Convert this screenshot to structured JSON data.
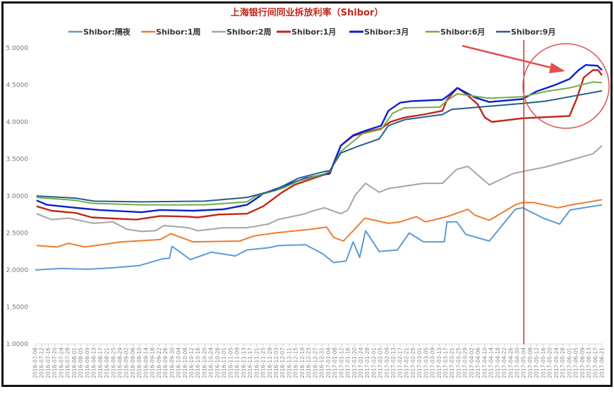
{
  "chart_data": {
    "type": "line",
    "title": "上海银行间同业拆放利率（Shibor）",
    "xlabel": "",
    "ylabel": "",
    "ylim": [
      1.0,
      5.0
    ],
    "yticks": [
      "1.0000",
      "1.5000",
      "2.0000",
      "2.5000",
      "3.0000",
      "3.5000",
      "4.0000",
      "4.5000",
      "5.0000"
    ],
    "grid": false,
    "legend_position": "top",
    "x_unit": "category index into categories",
    "categories": [
      "2016-07-08",
      "2016-07-12",
      "2016-07-16",
      "2016-07-20",
      "2016-07-24",
      "2016-07-28",
      "2016-08-01",
      "2016-08-05",
      "2016-08-09",
      "2016-08-13",
      "2016-08-17",
      "2016-08-21",
      "2016-08-25",
      "2016-08-29",
      "2016-09-02",
      "2016-09-06",
      "2016-09-10",
      "2016-09-14",
      "2016-09-18",
      "2016-09-22",
      "2016-09-26",
      "2016-09-30",
      "2016-10-04",
      "2016-10-08",
      "2016-10-12",
      "2016-10-16",
      "2016-10-20",
      "2016-10-24",
      "2016-10-28",
      "2016-11-01",
      "2016-11-05",
      "2016-11-09",
      "2016-11-13",
      "2016-11-17",
      "2016-11-21",
      "2016-11-25",
      "2016-11-29",
      "2016-12-03",
      "2016-12-07",
      "2016-12-11",
      "2016-12-15",
      "2016-12-19",
      "2016-12-23",
      "2016-12-27",
      "2016-12-31",
      "2017-01-04",
      "2017-01-08",
      "2017-01-12",
      "2017-01-16",
      "2017-01-20",
      "2017-01-24",
      "2017-01-28",
      "2017-02-01",
      "2017-02-05",
      "2017-02-09",
      "2017-02-13",
      "2017-02-17",
      "2017-02-21",
      "2017-02-25",
      "2017-03-01",
      "2017-03-05",
      "2017-03-09",
      "2017-03-13",
      "2017-03-17",
      "2017-03-21",
      "2017-03-25",
      "2017-03-29",
      "2017-04-02",
      "2017-04-06",
      "2017-04-10",
      "2017-04-14",
      "2017-04-18",
      "2017-04-22",
      "2017-04-26",
      "2017-04-30",
      "2017-05-04",
      "2017-05-08",
      "2017-05-12",
      "2017-05-16",
      "2017-05-20",
      "2017-05-24",
      "2017-05-28",
      "2017-06-01",
      "2017-06-05",
      "2017-06-09",
      "2017-06-13",
      "2017-06-17",
      "2017-06-21"
    ],
    "series": [
      {
        "name": "Shibor:隔夜",
        "color": "#5b9bd5",
        "bold": false,
        "points": [
          [
            0,
            2.0
          ],
          [
            4,
            2.02
          ],
          [
            8,
            2.01
          ],
          [
            12,
            2.03
          ],
          [
            16,
            2.06
          ],
          [
            19.5,
            2.15
          ],
          [
            20.6,
            2.16
          ],
          [
            21,
            2.32
          ],
          [
            23.8,
            2.14
          ],
          [
            27,
            2.24
          ],
          [
            30.7,
            2.19
          ],
          [
            32.5,
            2.27
          ],
          [
            35.8,
            2.3
          ],
          [
            37.4,
            2.33
          ],
          [
            41.5,
            2.34
          ],
          [
            44.1,
            2.22
          ],
          [
            45.8,
            2.1
          ],
          [
            47.7,
            2.12
          ],
          [
            48.8,
            2.38
          ],
          [
            49.8,
            2.17
          ],
          [
            50.7,
            2.53
          ],
          [
            52.8,
            2.25
          ],
          [
            55.6,
            2.27
          ],
          [
            57.4,
            2.5
          ],
          [
            59.6,
            2.38
          ],
          [
            62.8,
            2.38
          ],
          [
            63.2,
            2.65
          ],
          [
            64.7,
            2.65
          ],
          [
            66.1,
            2.48
          ],
          [
            69.7,
            2.39
          ],
          [
            73.7,
            2.82
          ],
          [
            74.8,
            2.84
          ],
          [
            78,
            2.7
          ],
          [
            80.5,
            2.62
          ],
          [
            82.1,
            2.81
          ],
          [
            87,
            2.88
          ]
        ]
      },
      {
        "name": "Shibor:1周",
        "color": "#ed7d31",
        "bold": false,
        "points": [
          [
            0.2,
            2.33
          ],
          [
            3.3,
            2.31
          ],
          [
            5.1,
            2.36
          ],
          [
            7.6,
            2.31
          ],
          [
            13.3,
            2.38
          ],
          [
            19.2,
            2.41
          ],
          [
            20.8,
            2.49
          ],
          [
            24.2,
            2.38
          ],
          [
            31.4,
            2.39
          ],
          [
            33.6,
            2.46
          ],
          [
            36.8,
            2.5
          ],
          [
            42.3,
            2.55
          ],
          [
            44.7,
            2.58
          ],
          [
            45.8,
            2.44
          ],
          [
            47.3,
            2.39
          ],
          [
            48.8,
            2.53
          ],
          [
            50.6,
            2.7
          ],
          [
            54.2,
            2.63
          ],
          [
            56,
            2.65
          ],
          [
            58.5,
            2.72
          ],
          [
            59.9,
            2.65
          ],
          [
            63.2,
            2.72
          ],
          [
            66.4,
            2.82
          ],
          [
            67.5,
            2.74
          ],
          [
            69.7,
            2.67
          ],
          [
            73.7,
            2.88
          ],
          [
            74.8,
            2.91
          ],
          [
            76.6,
            2.91
          ],
          [
            80.2,
            2.84
          ],
          [
            82.3,
            2.88
          ],
          [
            87,
            2.95
          ]
        ]
      },
      {
        "name": "Shibor:2周",
        "color": "#a5a5a5",
        "bold": false,
        "points": [
          [
            0.2,
            2.76
          ],
          [
            2.5,
            2.68
          ],
          [
            5.1,
            2.7
          ],
          [
            9,
            2.63
          ],
          [
            11.9,
            2.65
          ],
          [
            14.1,
            2.55
          ],
          [
            16.3,
            2.52
          ],
          [
            18.4,
            2.53
          ],
          [
            19.8,
            2.6
          ],
          [
            23.5,
            2.57
          ],
          [
            24.9,
            2.53
          ],
          [
            28.9,
            2.57
          ],
          [
            32.5,
            2.57
          ],
          [
            35.8,
            2.62
          ],
          [
            37.2,
            2.68
          ],
          [
            41.5,
            2.76
          ],
          [
            42.3,
            2.79
          ],
          [
            44.4,
            2.84
          ],
          [
            46.9,
            2.76
          ],
          [
            48,
            2.81
          ],
          [
            49.1,
            3.01
          ],
          [
            50.7,
            3.17
          ],
          [
            52.8,
            3.05
          ],
          [
            54.2,
            3.1
          ],
          [
            59.6,
            3.17
          ],
          [
            62.5,
            3.17
          ],
          [
            64.7,
            3.36
          ],
          [
            66.4,
            3.4
          ],
          [
            67.2,
            3.34
          ],
          [
            69.7,
            3.15
          ],
          [
            73.3,
            3.3
          ],
          [
            74.8,
            3.33
          ],
          [
            78.3,
            3.39
          ],
          [
            82,
            3.48
          ],
          [
            85.6,
            3.57
          ],
          [
            87,
            3.68
          ]
        ]
      },
      {
        "name": "Shibor:1月",
        "color": "#c0261a",
        "bold": true,
        "points": [
          [
            0.2,
            2.86
          ],
          [
            2.5,
            2.8
          ],
          [
            6.2,
            2.77
          ],
          [
            8.7,
            2.71
          ],
          [
            15.5,
            2.68
          ],
          [
            19.2,
            2.73
          ],
          [
            23.5,
            2.72
          ],
          [
            24.9,
            2.71
          ],
          [
            28.2,
            2.75
          ],
          [
            32.5,
            2.76
          ],
          [
            35,
            2.86
          ],
          [
            37.9,
            3.05
          ],
          [
            39.8,
            3.15
          ],
          [
            44.4,
            3.29
          ],
          [
            45.2,
            3.3
          ],
          [
            46.9,
            3.68
          ],
          [
            48.8,
            3.81
          ],
          [
            50.6,
            3.86
          ],
          [
            53.1,
            3.91
          ],
          [
            54.5,
            4.0
          ],
          [
            56.7,
            4.06
          ],
          [
            59.6,
            4.1
          ],
          [
            62.5,
            4.15
          ],
          [
            63.2,
            4.3
          ],
          [
            64.8,
            4.46
          ],
          [
            66.1,
            4.38
          ],
          [
            67.9,
            4.24
          ],
          [
            69,
            4.06
          ],
          [
            70.1,
            4.0
          ],
          [
            74.8,
            4.05
          ],
          [
            82,
            4.08
          ],
          [
            83.1,
            4.31
          ],
          [
            84.2,
            4.6
          ],
          [
            85.6,
            4.7
          ],
          [
            86.4,
            4.7
          ],
          [
            87,
            4.63
          ]
        ]
      },
      {
        "name": "Shibor:3月",
        "color": "#0a1fd0",
        "bold": true,
        "points": [
          [
            0.2,
            2.94
          ],
          [
            1.8,
            2.88
          ],
          [
            6.2,
            2.84
          ],
          [
            9.8,
            2.81
          ],
          [
            16.3,
            2.78
          ],
          [
            19.2,
            2.81
          ],
          [
            24.2,
            2.8
          ],
          [
            28.9,
            2.82
          ],
          [
            32.5,
            2.88
          ],
          [
            35,
            3.03
          ],
          [
            38.7,
            3.15
          ],
          [
            41.5,
            3.24
          ],
          [
            44.4,
            3.29
          ],
          [
            45.2,
            3.31
          ],
          [
            46.9,
            3.68
          ],
          [
            48.8,
            3.82
          ],
          [
            50.6,
            3.88
          ],
          [
            53.1,
            3.95
          ],
          [
            54.2,
            4.15
          ],
          [
            56,
            4.26
          ],
          [
            57.7,
            4.28
          ],
          [
            62.5,
            4.3
          ],
          [
            63.6,
            4.37
          ],
          [
            64.8,
            4.46
          ],
          [
            67.5,
            4.33
          ],
          [
            69.7,
            4.27
          ],
          [
            74.8,
            4.31
          ],
          [
            76.9,
            4.41
          ],
          [
            79.8,
            4.5
          ],
          [
            82,
            4.58
          ],
          [
            83.4,
            4.7
          ],
          [
            84.5,
            4.77
          ],
          [
            86.3,
            4.76
          ],
          [
            87,
            4.7
          ]
        ]
      },
      {
        "name": "Shibor:6月",
        "color": "#70ad47",
        "bold": false,
        "points": [
          [
            0.2,
            2.98
          ],
          [
            6.2,
            2.94
          ],
          [
            8.7,
            2.9
          ],
          [
            16.3,
            2.88
          ],
          [
            26,
            2.88
          ],
          [
            32.5,
            2.92
          ],
          [
            33.9,
            3.0
          ],
          [
            37.9,
            3.1
          ],
          [
            40.4,
            3.2
          ],
          [
            44.4,
            3.3
          ],
          [
            45.2,
            3.33
          ],
          [
            46.9,
            3.6
          ],
          [
            50.2,
            3.84
          ],
          [
            53.1,
            3.9
          ],
          [
            54.9,
            4.12
          ],
          [
            56.7,
            4.19
          ],
          [
            62.1,
            4.2
          ],
          [
            63.2,
            4.29
          ],
          [
            64.8,
            4.38
          ],
          [
            69.7,
            4.32
          ],
          [
            74.8,
            4.34
          ],
          [
            78.3,
            4.41
          ],
          [
            82,
            4.46
          ],
          [
            85.6,
            4.54
          ],
          [
            87,
            4.53
          ]
        ]
      },
      {
        "name": "Shibor:9月",
        "color": "#255e91",
        "bold": false,
        "points": [
          [
            0.2,
            3.0
          ],
          [
            6.2,
            2.97
          ],
          [
            9,
            2.93
          ],
          [
            16.3,
            2.92
          ],
          [
            26,
            2.93
          ],
          [
            32.5,
            2.98
          ],
          [
            36.8,
            3.08
          ],
          [
            40.4,
            3.24
          ],
          [
            44.4,
            3.33
          ],
          [
            45.2,
            3.34
          ],
          [
            46.9,
            3.58
          ],
          [
            49.5,
            3.67
          ],
          [
            52.8,
            3.77
          ],
          [
            54.2,
            3.95
          ],
          [
            56.7,
            4.03
          ],
          [
            62.5,
            4.1
          ],
          [
            63.9,
            4.17
          ],
          [
            66.8,
            4.19
          ],
          [
            74.8,
            4.25
          ],
          [
            78.3,
            4.28
          ],
          [
            82,
            4.34
          ],
          [
            87,
            4.42
          ]
        ]
      }
    ],
    "annotations": [
      {
        "type": "vertical-line",
        "at_category": "2017-05-04",
        "color": "#c0392b"
      },
      {
        "type": "circle",
        "around": "2017-05-08 to 2017-06-21, 4.3–4.8",
        "color": "#e05050"
      },
      {
        "type": "arrow",
        "pointing_to": "circled region",
        "color": "#e05050"
      }
    ]
  }
}
